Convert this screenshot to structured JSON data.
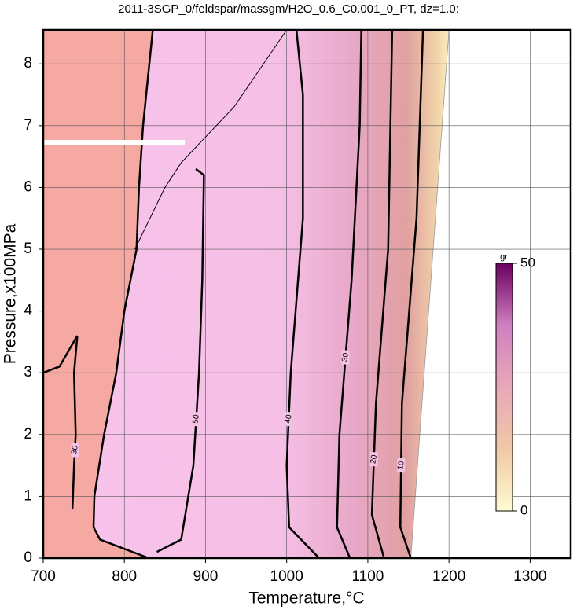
{
  "chart_data": {
    "type": "contour",
    "title": "2011-3SGP_0/feldspar/massgm/H2O_0.6_C0.001_0_PT, dz=1.0:",
    "x_label": "Temperature,°C",
    "y_label": "Pressure,x100MPa",
    "xlim": [
      700,
      1350
    ],
    "ylim": [
      0,
      8.55
    ],
    "xticks": [
      700,
      800,
      900,
      1000,
      1100,
      1200,
      1300
    ],
    "yticks": [
      0,
      1,
      2,
      3,
      4,
      5,
      6,
      7,
      8
    ],
    "grid": true,
    "solid_color": "#f5a9a2",
    "colorbar": {
      "label": "gr",
      "ticks": [
        0,
        50
      ],
      "colors": [
        "#fffbd0",
        "#f0c8a8",
        "#e8a8b8",
        "#d080c0",
        "#6a0060"
      ]
    },
    "contours": [
      {
        "level": 50,
        "x": [
          840,
          870,
          885,
          892,
          896,
          898,
          888
        ],
        "y": [
          0.1,
          0.3,
          1.5,
          3,
          4.5,
          6.2,
          6.3
        ]
      },
      {
        "level": 40,
        "x": [
          1040,
          1003,
          1000,
          1005,
          1020,
          1020,
          1012
        ],
        "y": [
          0,
          0.5,
          1.5,
          3,
          5.5,
          7.5,
          8.55
        ]
      },
      {
        "level": 30,
        "x": [
          1078,
          1062,
          1065,
          1080,
          1090,
          1092
        ],
        "y": [
          0,
          0.5,
          2,
          4.5,
          7,
          8.55
        ]
      },
      {
        "level": 20,
        "x": [
          1120,
          1105,
          1110,
          1125,
          1130
        ],
        "y": [
          0,
          0.7,
          2.5,
          5,
          8.55
        ]
      },
      {
        "level": 10,
        "x": [
          1153,
          1140,
          1142,
          1160,
          1168
        ],
        "y": [
          0,
          0.5,
          2.5,
          5.5,
          8.55
        ]
      },
      {
        "level": 30,
        "x": [
          736,
          738,
          740,
          738,
          742
        ],
        "y": [
          0.8,
          1.5,
          2,
          3,
          3.6
        ]
      }
    ],
    "lines": [
      {
        "x": [
          835,
          823,
          818,
          815,
          800,
          790,
          775,
          763,
          762,
          770,
          830
        ],
        "y": [
          8.55,
          7,
          6,
          5,
          4,
          3,
          2,
          1,
          0.5,
          0.3,
          0
        ],
        "width": 2.5
      },
      {
        "x": [
          813,
          850,
          870,
          935,
          1000
        ],
        "y": [
          5,
          6,
          6.4,
          7.3,
          8.55
        ],
        "width": 1
      },
      {
        "x": [
          700,
          720,
          742
        ],
        "y": [
          3,
          3.1,
          3.6
        ],
        "width": 2.5
      }
    ],
    "edge": {
      "x": [
        1153,
        1200
      ],
      "y": [
        0,
        8.55
      ]
    }
  }
}
